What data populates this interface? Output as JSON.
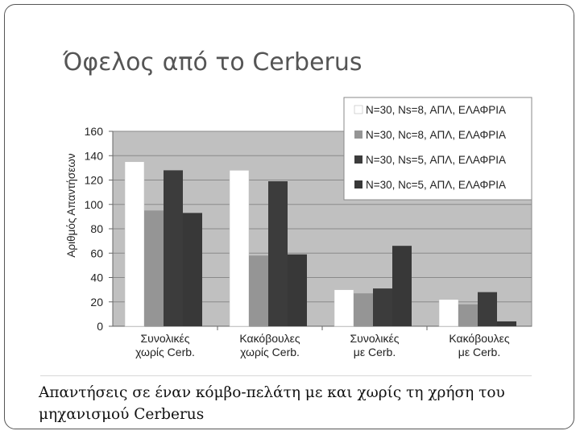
{
  "slide": {
    "title": "Όφελος από το Cerberus",
    "caption": "Απαντήσεις σε έναν κόμβο-πελάτη με και χωρίς τη χρήση του μηχανισμού Cerberus"
  },
  "chart_data": {
    "type": "bar",
    "title": "",
    "xlabel": "",
    "ylabel": "Αριθμός Απαντήσεων",
    "ylim": [
      0,
      160
    ],
    "yticks": [
      0,
      20,
      40,
      60,
      80,
      100,
      120,
      140,
      160
    ],
    "grid": true,
    "legend_position": "top-right",
    "plot_background": "#c0c0c0",
    "categories": [
      [
        "Συνολικές",
        "χωρίς Cerb."
      ],
      [
        "Κακόβουλες",
        "χωρίς Cerb."
      ],
      [
        "Συνολικές",
        "με Cerb."
      ],
      [
        "Κακόβουλες",
        "με Cerb."
      ]
    ],
    "series": [
      {
        "name": "N=30, Ns=8, ΑΠΛ, ΕΛΑΦΡΙΑ",
        "color": "#ffffff",
        "values": [
          135,
          128,
          30,
          22
        ]
      },
      {
        "name": "N=30, Nc=8, ΑΠΛ, ΕΛΑΦΡΙΑ",
        "color": "#959595",
        "values": [
          95,
          58,
          27,
          18
        ]
      },
      {
        "name": "N=30, Ns=5, ΑΠΛ, ΕΛΑΦΡΙΑ",
        "color": "#3c3c3c",
        "values": [
          128,
          119,
          31,
          28
        ]
      },
      {
        "name": "N=30, Nc=5, ΑΠΛ, ΕΛΑΦΡΙΑ",
        "color": "#383838",
        "values": [
          93,
          59,
          66,
          4
        ]
      }
    ]
  }
}
